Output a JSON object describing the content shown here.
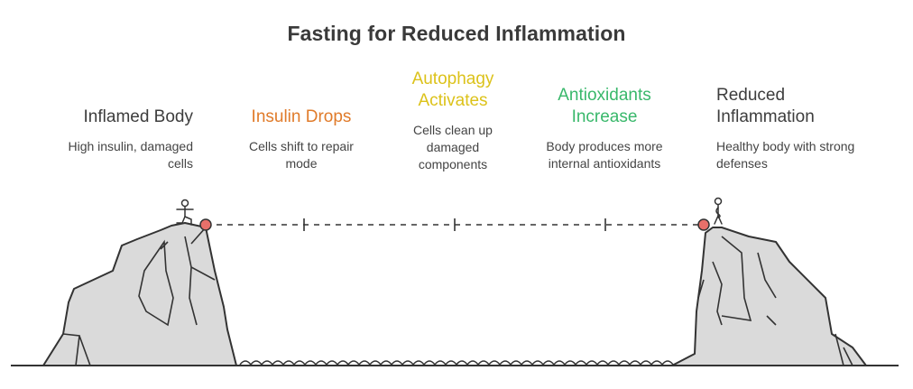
{
  "title": "Fasting for Reduced Inflammation",
  "colors": {
    "stage1": "#3d3d3d",
    "stage2": "#e07b2a",
    "stage3": "#dcc21a",
    "stage4": "#39b86b",
    "stage5": "#3d3d3d",
    "cliff_fill": "#dadada",
    "outline": "#333333",
    "marker": "#e8706a"
  },
  "stages": [
    {
      "heading": "Inflamed Body",
      "description": "High insulin, damaged cells"
    },
    {
      "heading": "Insulin Drops",
      "description": "Cells shift to repair mode"
    },
    {
      "heading": "Autophagy Activates",
      "description": "Cells clean up damaged components"
    },
    {
      "heading": "Antioxidants Increase",
      "description": "Body produces more internal antioxidants"
    },
    {
      "heading": "Reduced Inflammation",
      "description": "Healthy body with strong defenses"
    }
  ],
  "icons": {
    "left_figure": "person-running-icon",
    "right_figure": "person-standing-icon"
  }
}
